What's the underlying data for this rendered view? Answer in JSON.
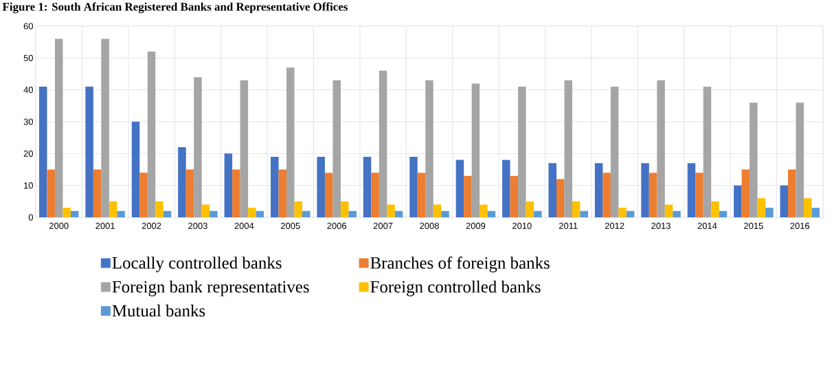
{
  "chart_data": {
    "type": "bar",
    "title": "Figure 1: South African Registered Banks and Representative Offices",
    "categories": [
      "2000",
      "2001",
      "2002",
      "2003",
      "2004",
      "2005",
      "2006",
      "2007",
      "2008",
      "2009",
      "2010",
      "2011",
      "2012",
      "2013",
      "2014",
      "2015",
      "2016"
    ],
    "series": [
      {
        "name": "Locally controlled banks",
        "color": "#4472c4",
        "values": [
          41,
          41,
          30,
          22,
          20,
          19,
          19,
          19,
          19,
          18,
          18,
          17,
          17,
          17,
          17,
          10,
          10
        ]
      },
      {
        "name": "Branches of foreign banks",
        "color": "#ed7d31",
        "values": [
          15,
          15,
          14,
          15,
          15,
          15,
          14,
          14,
          14,
          13,
          13,
          12,
          14,
          14,
          14,
          15,
          15
        ]
      },
      {
        "name": "Foreign bank representatives",
        "color": "#a5a5a5",
        "values": [
          56,
          56,
          52,
          44,
          43,
          47,
          43,
          46,
          43,
          42,
          41,
          43,
          41,
          43,
          41,
          36,
          36
        ]
      },
      {
        "name": "Foreign controlled banks",
        "color": "#ffc000",
        "values": [
          3,
          5,
          5,
          4,
          3,
          5,
          5,
          4,
          4,
          4,
          5,
          5,
          3,
          4,
          5,
          6,
          6
        ]
      },
      {
        "name": "Mutual banks",
        "color": "#5b9bd5",
        "values": [
          2,
          2,
          2,
          2,
          2,
          2,
          2,
          2,
          2,
          2,
          2,
          2,
          2,
          2,
          2,
          3,
          3
        ]
      }
    ],
    "ylim": [
      0,
      60
    ],
    "yticks": [
      0,
      10,
      20,
      30,
      40,
      50,
      60
    ],
    "grid": true,
    "legend": "bottom"
  }
}
